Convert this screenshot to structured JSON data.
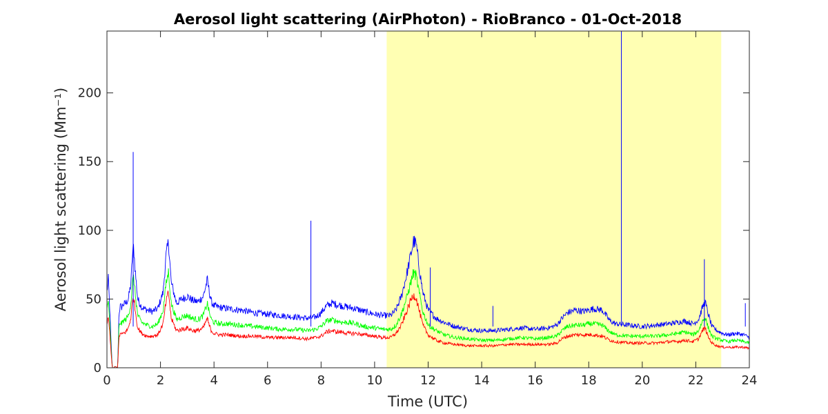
{
  "chart_data": {
    "type": "line",
    "title": "Aerosol light scattering (AirPhoton) - RioBranco - 01-Oct-2018",
    "xlabel": "Time (UTC)",
    "ylabel": "Aerosol light scattering (Mm⁻¹)",
    "xlim": [
      0,
      24
    ],
    "ylim": [
      0,
      245
    ],
    "xticks": [
      0,
      2,
      4,
      6,
      8,
      10,
      12,
      14,
      16,
      18,
      20,
      22,
      24
    ],
    "xtick_labels": [
      "0",
      "2",
      "4",
      "6",
      "8",
      "10",
      "12",
      "14",
      "16",
      "18",
      "20",
      "22",
      "24"
    ],
    "yticks": [
      0,
      50,
      100,
      150,
      200
    ],
    "ytick_labels": [
      "0",
      "50",
      "100",
      "150",
      "200"
    ],
    "grid": false,
    "shaded_region": {
      "x_start": 10.45,
      "x_end": 22.95,
      "color": "#ffffb3"
    },
    "series": [
      {
        "color": "#0000ff",
        "x": [
          0,
          0.05,
          0.1,
          0.15,
          0.2,
          0.25,
          0.3,
          0.4,
          0.45,
          0.5,
          0.55,
          0.6,
          0.7,
          0.8,
          0.9,
          0.95,
          1.0,
          1.05,
          1.15,
          1.3,
          1.5,
          1.7,
          1.9,
          2.1,
          2.2,
          2.3,
          2.4,
          2.6,
          2.8,
          3.0,
          3.2,
          3.4,
          3.6,
          3.75,
          3.8,
          3.9,
          4.0,
          4.2,
          4.5,
          5.0,
          5.5,
          6.0,
          6.5,
          7.0,
          7.5,
          7.8,
          8.0,
          8.2,
          8.4,
          8.6,
          8.8,
          9.0,
          9.3,
          9.6,
          10.0,
          10.3,
          10.6,
          10.8,
          11.0,
          11.2,
          11.35,
          11.45,
          11.55,
          11.65,
          11.8,
          12.0,
          12.3,
          12.6,
          13.0,
          13.5,
          14.0,
          14.5,
          15.0,
          15.5,
          16.0,
          16.5,
          16.8,
          17.0,
          17.2,
          17.5,
          17.8,
          18.0,
          18.2,
          18.5,
          18.8,
          19.0,
          19.5,
          20.0,
          20.5,
          21.0,
          21.3,
          21.6,
          21.9,
          22.1,
          22.25,
          22.35,
          22.45,
          22.6,
          22.8,
          23.0,
          23.2,
          23.5,
          23.8,
          24.0
        ],
        "y": [
          55,
          65,
          45,
          20,
          0,
          0,
          1,
          0,
          40,
          45,
          44,
          46,
          47,
          50,
          62,
          82,
          88,
          72,
          50,
          44,
          42,
          41,
          43,
          55,
          80,
          92,
          62,
          47,
          50,
          52,
          49,
          48,
          52,
          64,
          58,
          48,
          45,
          44,
          43,
          42,
          40,
          39,
          38,
          37,
          36,
          37,
          40,
          45,
          47,
          46,
          45,
          44,
          43,
          41,
          39,
          38,
          38,
          42,
          52,
          68,
          82,
          92,
          90,
          75,
          55,
          42,
          36,
          33,
          30,
          28,
          27,
          27,
          28,
          29,
          28,
          29,
          31,
          36,
          40,
          42,
          41,
          42,
          43,
          42,
          34,
          32,
          31,
          30,
          31,
          32,
          33,
          34,
          32,
          35,
          44,
          48,
          40,
          30,
          27,
          25,
          24,
          25,
          24,
          22
        ]
      },
      {
        "color": "#00ff00",
        "x": [
          0,
          0.05,
          0.1,
          0.15,
          0.2,
          0.25,
          0.3,
          0.4,
          0.45,
          0.5,
          0.55,
          0.6,
          0.7,
          0.8,
          0.9,
          0.95,
          1.0,
          1.05,
          1.15,
          1.3,
          1.5,
          1.7,
          1.9,
          2.1,
          2.2,
          2.3,
          2.4,
          2.6,
          2.8,
          3.0,
          3.2,
          3.4,
          3.6,
          3.75,
          3.8,
          3.9,
          4.0,
          4.2,
          4.5,
          5.0,
          5.5,
          6.0,
          6.5,
          7.0,
          7.5,
          7.8,
          8.0,
          8.2,
          8.4,
          8.6,
          8.8,
          9.0,
          9.3,
          9.6,
          10.0,
          10.3,
          10.6,
          10.8,
          11.0,
          11.2,
          11.35,
          11.45,
          11.55,
          11.65,
          11.8,
          12.0,
          12.3,
          12.6,
          13.0,
          13.5,
          14.0,
          14.5,
          15.0,
          15.5,
          16.0,
          16.5,
          16.8,
          17.0,
          17.2,
          17.5,
          17.8,
          18.0,
          18.2,
          18.5,
          18.8,
          19.0,
          19.5,
          20.0,
          20.5,
          21.0,
          21.3,
          21.6,
          21.9,
          22.1,
          22.25,
          22.35,
          22.45,
          22.6,
          22.8,
          23.0,
          23.2,
          23.5,
          23.8,
          24.0
        ],
        "y": [
          42,
          48,
          35,
          15,
          0,
          0,
          1,
          0,
          30,
          33,
          32,
          34,
          35,
          38,
          48,
          62,
          66,
          55,
          38,
          33,
          31,
          30,
          32,
          42,
          60,
          70,
          47,
          35,
          37,
          38,
          36,
          35,
          38,
          47,
          42,
          35,
          33,
          32,
          32,
          31,
          30,
          29,
          28,
          28,
          27,
          28,
          30,
          34,
          35,
          34,
          33,
          33,
          32,
          30,
          29,
          28,
          28,
          31,
          39,
          51,
          62,
          69,
          67,
          56,
          41,
          31,
          27,
          24,
          22,
          21,
          20,
          20,
          21,
          22,
          21,
          22,
          23,
          27,
          30,
          31,
          31,
          32,
          32,
          31,
          26,
          24,
          23,
          23,
          23,
          24,
          25,
          26,
          24,
          27,
          34,
          37,
          30,
          23,
          21,
          20,
          19,
          20,
          19,
          18
        ]
      },
      {
        "color": "#ff0000",
        "x": [
          0,
          0.05,
          0.1,
          0.15,
          0.2,
          0.25,
          0.3,
          0.4,
          0.45,
          0.5,
          0.55,
          0.6,
          0.7,
          0.8,
          0.9,
          0.95,
          1.0,
          1.05,
          1.15,
          1.3,
          1.5,
          1.7,
          1.9,
          2.1,
          2.2,
          2.3,
          2.4,
          2.6,
          2.8,
          3.0,
          3.2,
          3.4,
          3.6,
          3.75,
          3.8,
          3.9,
          4.0,
          4.2,
          4.5,
          5.0,
          5.5,
          6.0,
          6.5,
          7.0,
          7.5,
          7.8,
          8.0,
          8.2,
          8.4,
          8.6,
          8.8,
          9.0,
          9.3,
          9.6,
          10.0,
          10.3,
          10.6,
          10.8,
          11.0,
          11.2,
          11.35,
          11.45,
          11.55,
          11.65,
          11.8,
          12.0,
          12.3,
          12.6,
          13.0,
          13.5,
          14.0,
          14.5,
          15.0,
          15.5,
          16.0,
          16.5,
          16.8,
          17.0,
          17.2,
          17.5,
          17.8,
          18.0,
          18.2,
          18.5,
          18.8,
          19.0,
          19.5,
          20.0,
          20.5,
          21.0,
          21.3,
          21.6,
          21.9,
          22.1,
          22.25,
          22.35,
          22.45,
          22.6,
          22.8,
          23.0,
          23.2,
          23.5,
          23.8,
          24.0
        ],
        "y": [
          32,
          36,
          27,
          12,
          0,
          0,
          1,
          0,
          22,
          25,
          24,
          25,
          26,
          29,
          37,
          48,
          52,
          43,
          29,
          25,
          23,
          23,
          24,
          32,
          47,
          55,
          36,
          27,
          28,
          29,
          27,
          27,
          29,
          36,
          32,
          27,
          25,
          24,
          24,
          23,
          23,
          22,
          22,
          22,
          21,
          22,
          23,
          26,
          27,
          26,
          26,
          25,
          25,
          24,
          23,
          22,
          22,
          25,
          31,
          41,
          49,
          53,
          51,
          43,
          31,
          24,
          20,
          18,
          17,
          16,
          16,
          16,
          17,
          17,
          17,
          17,
          18,
          21,
          23,
          24,
          24,
          24,
          24,
          23,
          20,
          19,
          18,
          18,
          18,
          19,
          19,
          20,
          19,
          21,
          27,
          29,
          23,
          18,
          16,
          15,
          15,
          15,
          15,
          14
        ]
      }
    ],
    "spikes": [
      {
        "color": "#0000ff",
        "x": 0.98,
        "y": 157
      },
      {
        "color": "#0000ff",
        "x": 7.62,
        "y": 107
      },
      {
        "color": "#0000ff",
        "x": 12.08,
        "y": 73
      },
      {
        "color": "#0000ff",
        "x": 14.42,
        "y": 45
      },
      {
        "color": "#0000ff",
        "x": 19.22,
        "y": 245
      },
      {
        "color": "#0000ff",
        "x": 22.32,
        "y": 79
      },
      {
        "color": "#0000ff",
        "x": 23.85,
        "y": 47
      }
    ]
  }
}
